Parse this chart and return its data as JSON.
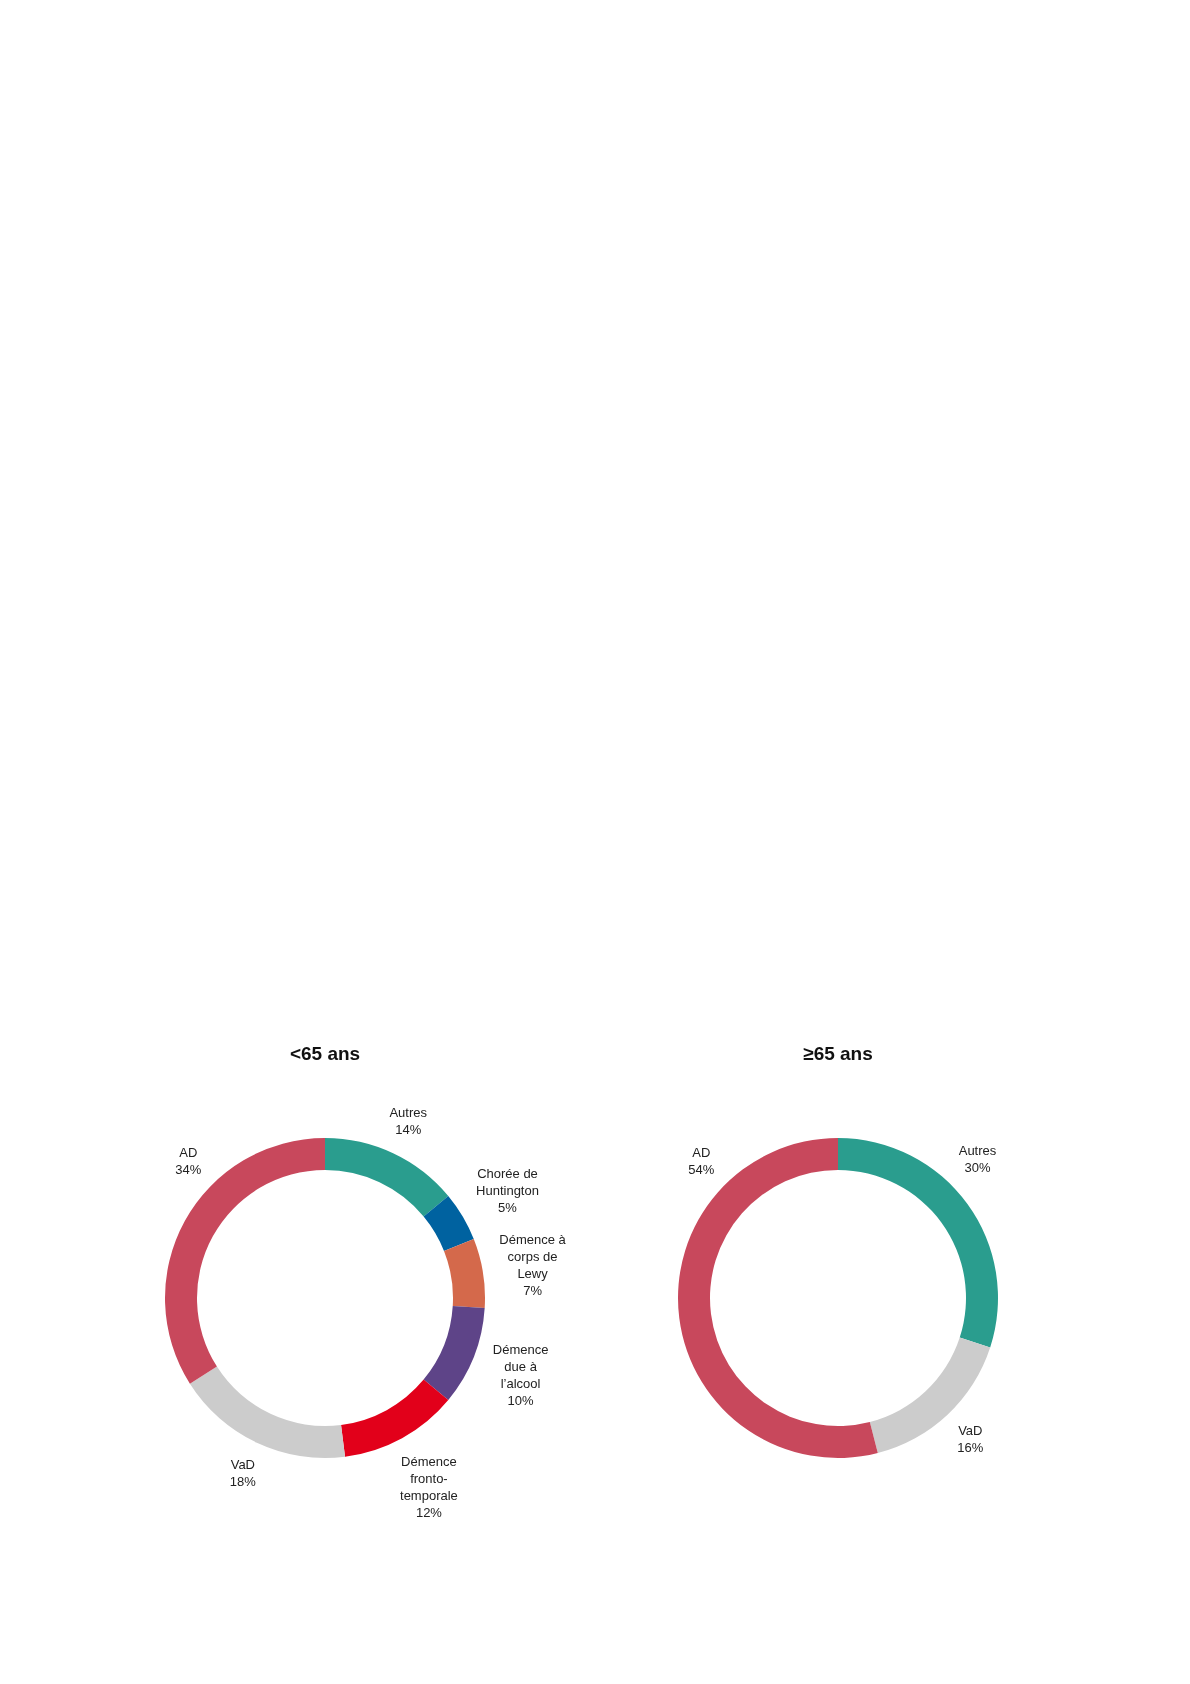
{
  "chart_data": [
    {
      "type": "donut",
      "title": "<65 ans",
      "categories": [
        "Autres",
        "Chorée de Huntington",
        "Démence à corps de Lewy",
        "Démence due à l’alcool",
        "Démence fronto-temporale",
        "VaD",
        "AD"
      ],
      "values": [
        14,
        5,
        7,
        10,
        12,
        18,
        34
      ],
      "colors": [
        "#2a9d8e",
        "#0062a0",
        "#d4694b",
        "#5e4488",
        "#e2001a",
        "#cccccc",
        "#c8485c"
      ],
      "value_labels": [
        "14%",
        "5%",
        "7%",
        "10%",
        "12%",
        "18%",
        "34%"
      ]
    },
    {
      "type": "donut",
      "title": "≥65 ans",
      "categories": [
        "Autres",
        "VaD",
        "AD"
      ],
      "values": [
        30,
        16,
        54
      ],
      "colors": [
        "#2a9d8e",
        "#cccccc",
        "#c8485c"
      ],
      "value_labels": [
        "30%",
        "16%",
        "54%"
      ]
    }
  ]
}
